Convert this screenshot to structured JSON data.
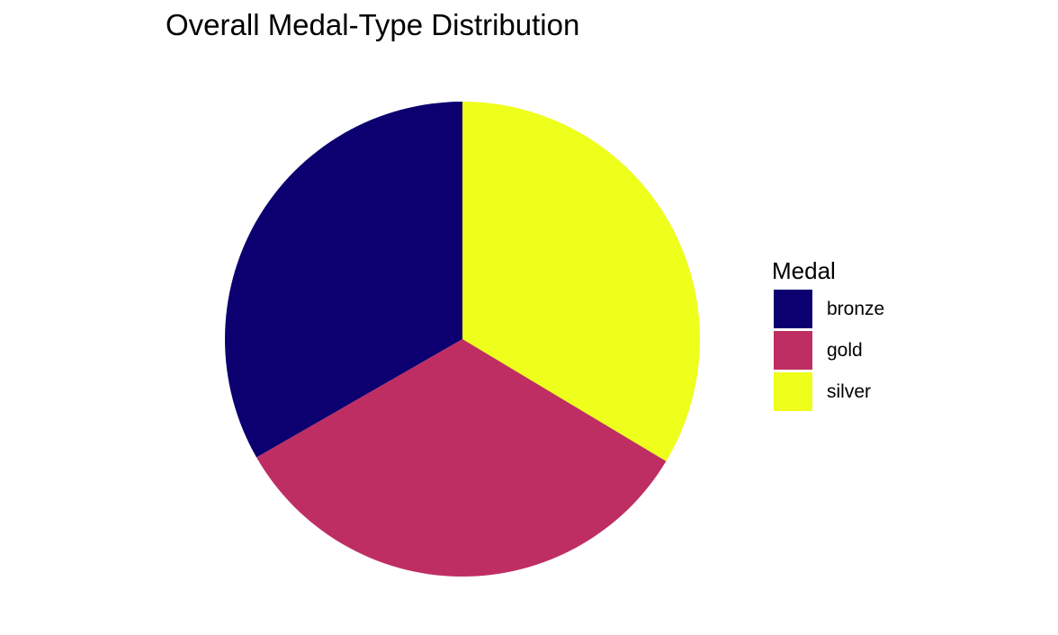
{
  "chart_data": {
    "type": "pie",
    "title": "Overall Medal-Type Distribution",
    "legend_title": "Medal",
    "legend_position": "right",
    "start_angle_deg": 0,
    "direction": "clockwise",
    "slices": [
      {
        "label": "silver",
        "value": 33.6,
        "color": "#EEFF1B"
      },
      {
        "label": "gold",
        "value": 33.1,
        "color": "#BF2E63"
      },
      {
        "label": "bronze",
        "value": 33.3,
        "color": "#0C0070"
      }
    ],
    "legend": [
      {
        "label": "bronze",
        "color": "#0C0070"
      },
      {
        "label": "gold",
        "color": "#BF2E63"
      },
      {
        "label": "silver",
        "color": "#EEFF1B"
      }
    ]
  }
}
